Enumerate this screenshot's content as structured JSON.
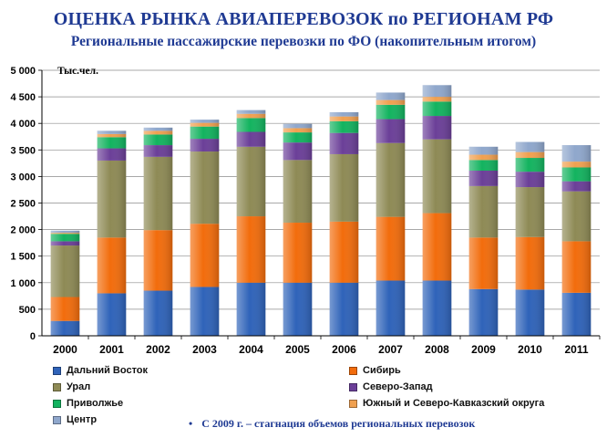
{
  "title": "ОЦЕНКА РЫНКА АВИАПЕРЕВОЗОК по РЕГИОНАМ РФ",
  "subtitle": "Региональные пассажирские перевозки по ФО (накопительным итогом)",
  "note": "С 2009 г. – стагнация объемов региональных перевозок",
  "chart_data": {
    "type": "bar",
    "stacked": true,
    "unit_label": "Тыс.чел.",
    "ylim": [
      0,
      5000
    ],
    "yticks": [
      "0",
      "500",
      "1 000",
      "1 500",
      "2 000",
      "2 500",
      "3 000",
      "3 500",
      "4 000",
      "4 500",
      "5 000"
    ],
    "ytick_values": [
      0,
      500,
      1000,
      1500,
      2000,
      2500,
      3000,
      3500,
      4000,
      4500,
      5000
    ],
    "grid": true,
    "legend_position": "bottom",
    "categories": [
      "2000",
      "2001",
      "2002",
      "2003",
      "2004",
      "2005",
      "2006",
      "2007",
      "2008",
      "2009",
      "2010",
      "2011"
    ],
    "series": [
      {
        "name": "Дальний  Восток",
        "color": "#2f63b9",
        "values": [
          280,
          800,
          850,
          920,
          1000,
          1000,
          1000,
          1040,
          1040,
          880,
          870,
          810
        ]
      },
      {
        "name": "Сибирь",
        "color": "#f26c0c",
        "values": [
          450,
          1050,
          1140,
          1190,
          1250,
          1130,
          1150,
          1200,
          1270,
          970,
          990,
          970
        ]
      },
      {
        "name": "Урал",
        "color": "#8e8a55",
        "values": [
          970,
          1450,
          1380,
          1360,
          1310,
          1180,
          1270,
          1390,
          1390,
          970,
          940,
          940
        ]
      },
      {
        "name": "Северо-Запад",
        "color": "#6b3f98",
        "values": [
          80,
          230,
          220,
          240,
          280,
          330,
          400,
          450,
          440,
          290,
          290,
          190
        ]
      },
      {
        "name": "Приволжье",
        "color": "#13b35f",
        "values": [
          140,
          210,
          200,
          230,
          260,
          190,
          220,
          270,
          270,
          200,
          260,
          260
        ]
      },
      {
        "name": "Южный  и  Северо-Кавказский  округа",
        "color": "#f0a050",
        "values": [
          20,
          60,
          70,
          70,
          80,
          80,
          90,
          90,
          90,
          100,
          110,
          110
        ]
      },
      {
        "name": "Центр",
        "color": "#8fa7cc",
        "values": [
          40,
          60,
          60,
          60,
          70,
          80,
          80,
          140,
          220,
          150,
          190,
          310
        ]
      }
    ]
  }
}
